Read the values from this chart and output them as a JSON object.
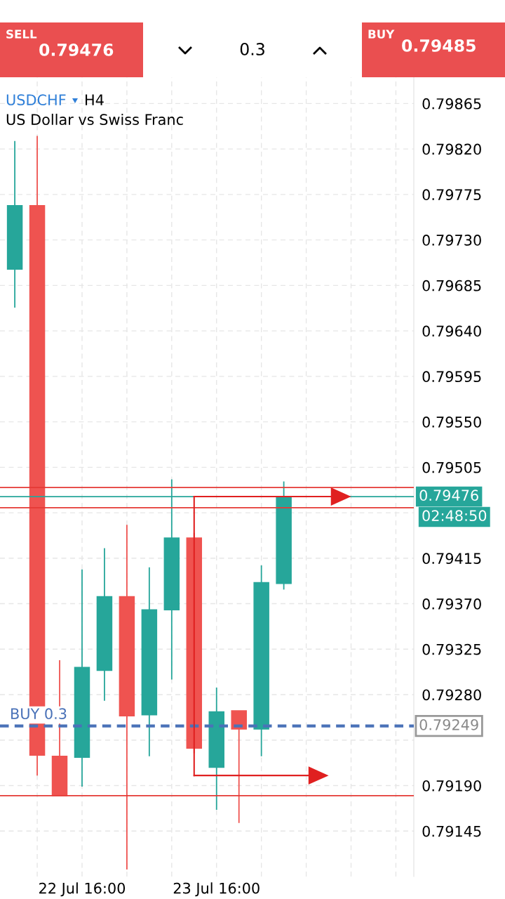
{
  "chart_data": {
    "type": "candlestick",
    "title": "USDCHF",
    "subtitle": "US Dollar vs Swiss Franc",
    "categories": [
      null,
      null,
      null,
      "22 Jul 16:00",
      null,
      null,
      null,
      null,
      null,
      "23 Jul 16:00",
      null,
      null,
      null,
      null,
      null,
      null,
      null,
      null
    ],
    "ohlc": [
      [
        0.79701,
        0.79828,
        0.79663,
        0.79764
      ],
      [
        0.79764,
        0.79833,
        0.792,
        0.7922
      ],
      [
        0.79219,
        0.79314,
        0.7918,
        0.7918
      ],
      [
        0.79218,
        0.79404,
        0.79189,
        0.79307
      ],
      [
        0.79304,
        0.79425,
        0.79274,
        0.79377
      ],
      [
        0.79377,
        0.79448,
        0.79107,
        0.79259
      ],
      [
        0.7926,
        0.79406,
        0.79219,
        0.79364
      ],
      [
        0.79364,
        0.79493,
        0.79295,
        0.79435
      ],
      [
        0.79435,
        0.7944,
        0.79222,
        0.79227
      ],
      [
        0.79208,
        0.79287,
        0.79166,
        0.79263
      ],
      [
        0.79264,
        0.79264,
        0.79153,
        0.79246
      ],
      [
        0.79246,
        0.79408,
        0.79219,
        0.79391
      ],
      [
        0.7939,
        0.79491,
        0.79384,
        0.79475
      ],
      null,
      null,
      null,
      null,
      null
    ],
    "colors": [
      "#26a69a",
      "#ef5350",
      "#ef5350",
      "#26a69a",
      "#26a69a",
      "#ef5350",
      "#26a69a",
      "#26a69a",
      "#ef5350",
      "#26a69a",
      "#ef5350",
      "#26a69a",
      "#26a69a",
      null,
      null,
      null,
      null,
      null
    ],
    "ylim": [
      0.791,
      0.79891
    ],
    "yticks": [
      0.79145,
      {
        "value": 0.7919,
        "label": "0.79190"
      },
      {
        "value": 0.79235,
        "label": null
      },
      {
        "value": 0.7928,
        "label": "0.79280"
      },
      0.79325,
      {
        "value": 0.7937,
        "label": "0.79370"
      },
      0.79415,
      {
        "value": 0.7946,
        "label": null
      },
      0.79505,
      {
        "value": 0.7955,
        "label": "0.79550"
      },
      0.79595,
      {
        "value": 0.7964,
        "label": "0.79640"
      },
      0.79685,
      {
        "value": 0.7973,
        "label": "0.79730"
      },
      0.79775,
      {
        "value": 0.7982,
        "label": "0.79820"
      },
      0.79865
    ],
    "grid": true,
    "ref_lines": [
      {
        "axis": "y",
        "value": 0.79485,
        "color": "#e53935",
        "line_style": "solid"
      },
      {
        "axis": "y",
        "value": 0.79476,
        "label": "0.79476",
        "color": "#26a69a",
        "line_style": "solid"
      },
      {
        "axis": "y",
        "value": 0.79465,
        "color": "#e53935",
        "line_style": "solid"
      },
      {
        "axis": "y",
        "value": 0.79249,
        "label": "0.79249",
        "color": "#4a72b8",
        "line_style": "dashed"
      },
      {
        "axis": "y",
        "value": 0.7918,
        "color": "#e53935",
        "line_style": "solid"
      }
    ],
    "annotations": [
      "SELL",
      "0.79476",
      "0.3",
      "BUY",
      "0.79485",
      "H4",
      "02:48:50",
      "BUY 0.3"
    ]
  }
}
